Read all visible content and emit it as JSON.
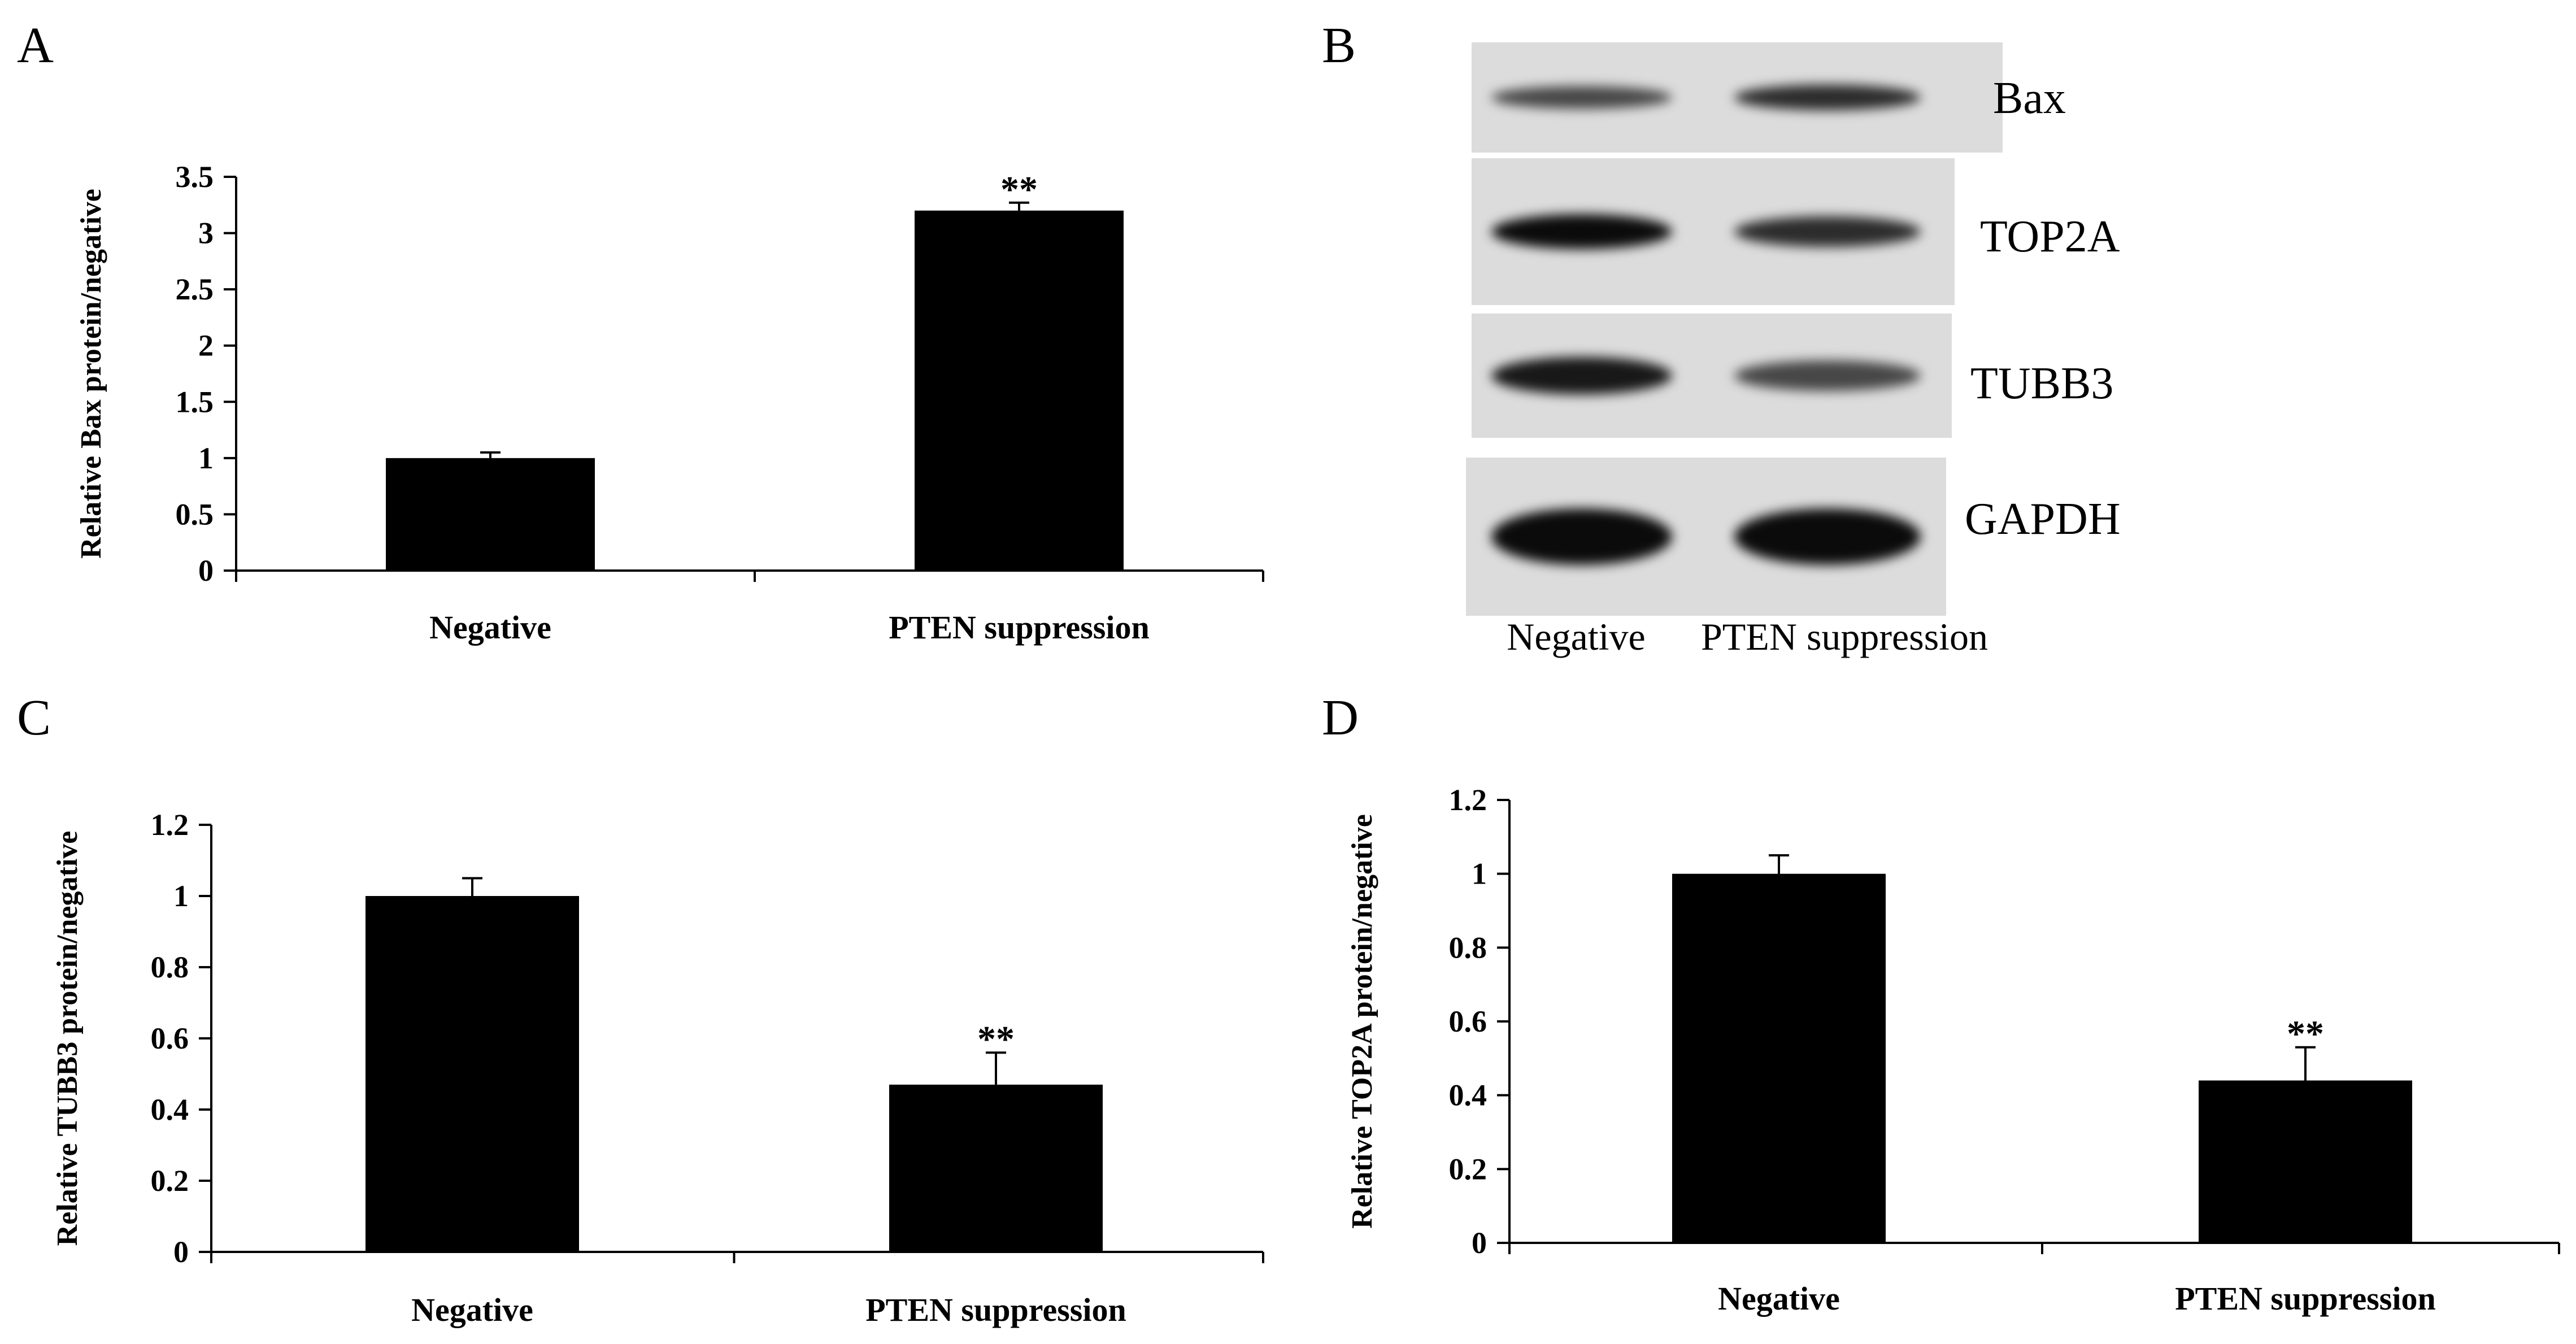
{
  "panels": {
    "A": "A",
    "B": "B",
    "C": "C",
    "D": "D"
  },
  "chart_data": [
    {
      "panel": "A",
      "type": "bar",
      "categories": [
        "Negative",
        "PTEN suppression"
      ],
      "values": [
        1.0,
        3.2
      ],
      "errors": [
        0.05,
        0.07
      ],
      "significance": [
        "",
        "**"
      ],
      "ylabel": "Relative Bax  protein/negative",
      "ylim": [
        0,
        3.5
      ],
      "yticks": [
        "0",
        "0.5",
        "1",
        "1.5",
        "2",
        "2.5",
        "3",
        "3.5"
      ],
      "ytick_values": [
        0,
        0.5,
        1,
        1.5,
        2,
        2.5,
        3,
        3.5
      ]
    },
    {
      "panel": "C",
      "type": "bar",
      "categories": [
        "Negative",
        "PTEN suppression"
      ],
      "values": [
        1.0,
        0.47
      ],
      "errors": [
        0.05,
        0.09
      ],
      "significance": [
        "",
        "**"
      ],
      "ylabel": "Relative TUBB3 protein/negative",
      "ylim": [
        0,
        1.2
      ],
      "yticks": [
        "0",
        "0.2",
        "0.4",
        "0.6",
        "0.8",
        "1",
        "1.2"
      ],
      "ytick_values": [
        0,
        0.2,
        0.4,
        0.6,
        0.8,
        1,
        1.2
      ]
    },
    {
      "panel": "D",
      "type": "bar",
      "categories": [
        "Negative",
        "PTEN suppression"
      ],
      "values": [
        1.0,
        0.44
      ],
      "errors": [
        0.05,
        0.09
      ],
      "significance": [
        "",
        "**"
      ],
      "ylabel": "Relative TOP2A protein/negative",
      "ylim": [
        0,
        1.2
      ],
      "yticks": [
        "0",
        "0.2",
        "0.4",
        "0.6",
        "0.8",
        "1",
        "1.2"
      ],
      "ytick_values": [
        0,
        0.2,
        0.4,
        0.6,
        0.8,
        1,
        1.2
      ]
    }
  ],
  "blot": {
    "rows": [
      {
        "label": "Bax",
        "intensity": [
          0.55,
          0.75
        ]
      },
      {
        "label": "TOP2A",
        "intensity": [
          1.0,
          0.75
        ]
      },
      {
        "label": "TUBB3",
        "intensity": [
          0.9,
          0.55
        ]
      },
      {
        "label": "GAPDH",
        "intensity": [
          1.0,
          1.0
        ]
      }
    ],
    "lanes": [
      "Negative",
      "PTEN suppression"
    ],
    "colors": {
      "background": "#dcdcdc",
      "band": "#000000"
    }
  }
}
